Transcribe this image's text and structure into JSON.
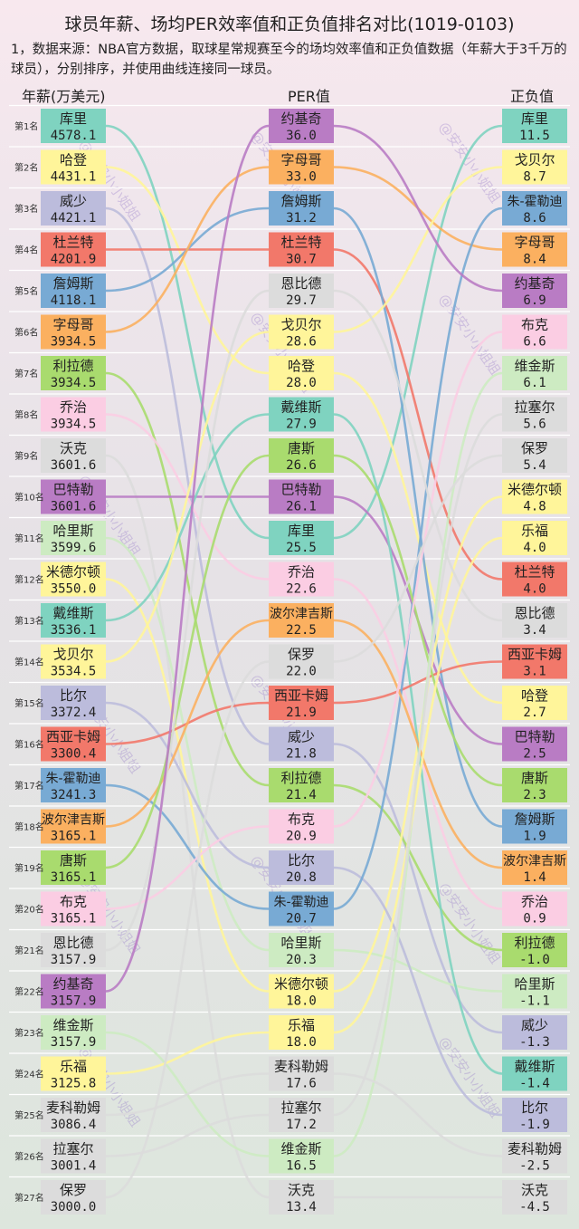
{
  "title": "球员年薪、场均PER效率值和正负值排名对比(1019-0103)",
  "note": "1，数据来源：NBA官方数据，取球星常规赛至今的场均效率值和正负值数据（年薪大于3千万的球员），分别排序，并使用曲线连接同一球员。",
  "watermark": "@安安小小姐姐",
  "chart_data": {
    "type": "bump",
    "columns": [
      {
        "key": "salary",
        "label": "年薪(万美元)"
      },
      {
        "key": "per",
        "label": "PER值"
      },
      {
        "key": "pm",
        "label": "正负值"
      }
    ],
    "rank_labels": [
      "第1名",
      "第2名",
      "第3名",
      "第4名",
      "第5名",
      "第6名",
      "第7名",
      "第8名",
      "第9名",
      "第10名",
      "第11名",
      "第12名",
      "第13名",
      "第14名",
      "第15名",
      "第16名",
      "第17名",
      "第18名",
      "第19名",
      "第20名",
      "第21名",
      "第22名",
      "第23名",
      "第24名",
      "第25名",
      "第26名",
      "第27名"
    ],
    "players": [
      {
        "name": "库里",
        "color": "#7fd3c0",
        "salary": "4578.1",
        "per": "25.5",
        "pm": "11.5"
      },
      {
        "name": "哈登",
        "color": "#fff59a",
        "salary": "4431.1",
        "per": "28.0",
        "pm": "2.7"
      },
      {
        "name": "威少",
        "color": "#bcbcdc",
        "salary": "4421.1",
        "per": "21.8",
        "pm": "-1.3"
      },
      {
        "name": "杜兰特",
        "color": "#f2786a",
        "salary": "4201.9",
        "per": "30.7",
        "pm": "4.0"
      },
      {
        "name": "詹姆斯",
        "color": "#78aad4",
        "salary": "4118.1",
        "per": "31.2",
        "pm": "1.9"
      },
      {
        "name": "字母哥",
        "color": "#fbb060",
        "salary": "3934.5",
        "per": "33.0",
        "pm": "8.4"
      },
      {
        "name": "利拉德",
        "color": "#a9db6e",
        "salary": "3934.5",
        "per": "21.4",
        "pm": "-1.0"
      },
      {
        "name": "乔治",
        "color": "#fbcde3",
        "salary": "3934.5",
        "per": "22.6",
        "pm": "0.9"
      },
      {
        "name": "沃克",
        "color": "#dcdcdc",
        "salary": "3601.6",
        "per": "13.4",
        "pm": "-4.5"
      },
      {
        "name": "巴特勒",
        "color": "#b97cc4",
        "salary": "3601.6",
        "per": "26.1",
        "pm": "2.5"
      },
      {
        "name": "哈里斯",
        "color": "#cdebc2",
        "salary": "3599.6",
        "per": "20.3",
        "pm": "-1.1"
      },
      {
        "name": "米德尔顿",
        "color": "#fff59a",
        "salary": "3550.0",
        "per": "18.0",
        "pm": "4.8"
      },
      {
        "name": "戴维斯",
        "color": "#7fd3c0",
        "salary": "3536.1",
        "per": "27.9",
        "pm": "-1.4"
      },
      {
        "name": "戈贝尔",
        "color": "#fff59a",
        "salary": "3534.5",
        "per": "28.6",
        "pm": "8.7"
      },
      {
        "name": "比尔",
        "color": "#bcbcdc",
        "salary": "3372.4",
        "per": "20.8",
        "pm": "-1.9"
      },
      {
        "name": "西亚卡姆",
        "color": "#f2786a",
        "salary": "3300.4",
        "per": "21.9",
        "pm": "3.1"
      },
      {
        "name": "朱-霍勒迪",
        "color": "#78aad4",
        "salary": "3241.3",
        "per": "20.7",
        "pm": "8.6"
      },
      {
        "name": "波尔津吉斯",
        "color": "#fbb060",
        "salary": "3165.1",
        "per": "22.5",
        "pm": "1.4"
      },
      {
        "name": "唐斯",
        "color": "#a9db6e",
        "salary": "3165.1",
        "per": "26.6",
        "pm": "2.3"
      },
      {
        "name": "布克",
        "color": "#fbcde3",
        "salary": "3165.1",
        "per": "20.9",
        "pm": "6.6"
      },
      {
        "name": "恩比德",
        "color": "#dcdcdc",
        "salary": "3157.9",
        "per": "29.7",
        "pm": "3.4"
      },
      {
        "name": "约基奇",
        "color": "#b97cc4",
        "salary": "3157.9",
        "per": "36.0",
        "pm": "6.9"
      },
      {
        "name": "维金斯",
        "color": "#cdebc2",
        "salary": "3157.9",
        "per": "16.5",
        "pm": "6.1"
      },
      {
        "name": "乐福",
        "color": "#fff59a",
        "salary": "3125.8",
        "per": "18.0",
        "pm": "4.0"
      },
      {
        "name": "麦科勒姆",
        "color": "#dcdcdc",
        "salary": "3086.4",
        "per": "17.6",
        "pm": "-2.5"
      },
      {
        "name": "拉塞尔",
        "color": "#dcdcdc",
        "salary": "3001.4",
        "per": "17.2",
        "pm": "5.6"
      },
      {
        "name": "保罗",
        "color": "#dcdcdc",
        "salary": "3000.0",
        "per": "22.0",
        "pm": "5.4"
      }
    ],
    "order": {
      "salary": [
        "库里",
        "哈登",
        "威少",
        "杜兰特",
        "詹姆斯",
        "字母哥",
        "利拉德",
        "乔治",
        "沃克",
        "巴特勒",
        "哈里斯",
        "米德尔顿",
        "戴维斯",
        "戈贝尔",
        "比尔",
        "西亚卡姆",
        "朱-霍勒迪",
        "波尔津吉斯",
        "唐斯",
        "布克",
        "恩比德",
        "约基奇",
        "维金斯",
        "乐福",
        "麦科勒姆",
        "拉塞尔",
        "保罗"
      ],
      "per": [
        "约基奇",
        "字母哥",
        "詹姆斯",
        "杜兰特",
        "恩比德",
        "戈贝尔",
        "哈登",
        "戴维斯",
        "唐斯",
        "巴特勒",
        "库里",
        "乔治",
        "波尔津吉斯",
        "保罗",
        "西亚卡姆",
        "威少",
        "利拉德",
        "布克",
        "比尔",
        "朱-霍勒迪",
        "哈里斯",
        "米德尔顿",
        "乐福",
        "麦科勒姆",
        "拉塞尔",
        "维金斯",
        "沃克"
      ],
      "pm": [
        "库里",
        "戈贝尔",
        "朱-霍勒迪",
        "字母哥",
        "约基奇",
        "布克",
        "维金斯",
        "拉塞尔",
        "保罗",
        "米德尔顿",
        "乐福",
        "杜兰特",
        "恩比德",
        "西亚卡姆",
        "哈登",
        "巴特勒",
        "唐斯",
        "詹姆斯",
        "波尔津吉斯",
        "乔治",
        "利拉德",
        "哈里斯",
        "威少",
        "戴维斯",
        "比尔",
        "麦科勒姆",
        "沃克"
      ]
    }
  }
}
